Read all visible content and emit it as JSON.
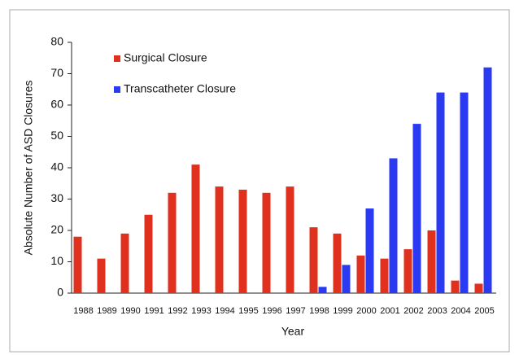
{
  "chart_data": {
    "type": "bar",
    "x_label": "Year",
    "y_label": "Absolute Number of ASD Closures",
    "categories": [
      "1988",
      "1989",
      "1990",
      "1991",
      "1992",
      "1993",
      "1994",
      "1995",
      "1996",
      "1997",
      "1998",
      "1999",
      "2000",
      "2001",
      "2002",
      "2003",
      "2004",
      "2005"
    ],
    "series": [
      {
        "name": "Surgical Closure",
        "color": "#e0301e",
        "values": [
          18,
          11,
          19,
          25,
          32,
          41,
          34,
          33,
          32,
          34,
          21,
          19,
          12,
          11,
          14,
          20,
          4,
          3
        ]
      },
      {
        "name": "Transcatheter Closure",
        "color": "#2a3af2",
        "values": [
          null,
          null,
          null,
          null,
          null,
          null,
          null,
          null,
          null,
          null,
          2,
          9,
          27,
          43,
          54,
          64,
          64,
          72
        ]
      }
    ],
    "ylim": [
      0,
      80
    ],
    "yticks": [
      0,
      10,
      20,
      30,
      40,
      50,
      60,
      70,
      80
    ],
    "legend": "upper left",
    "grid": false
  }
}
